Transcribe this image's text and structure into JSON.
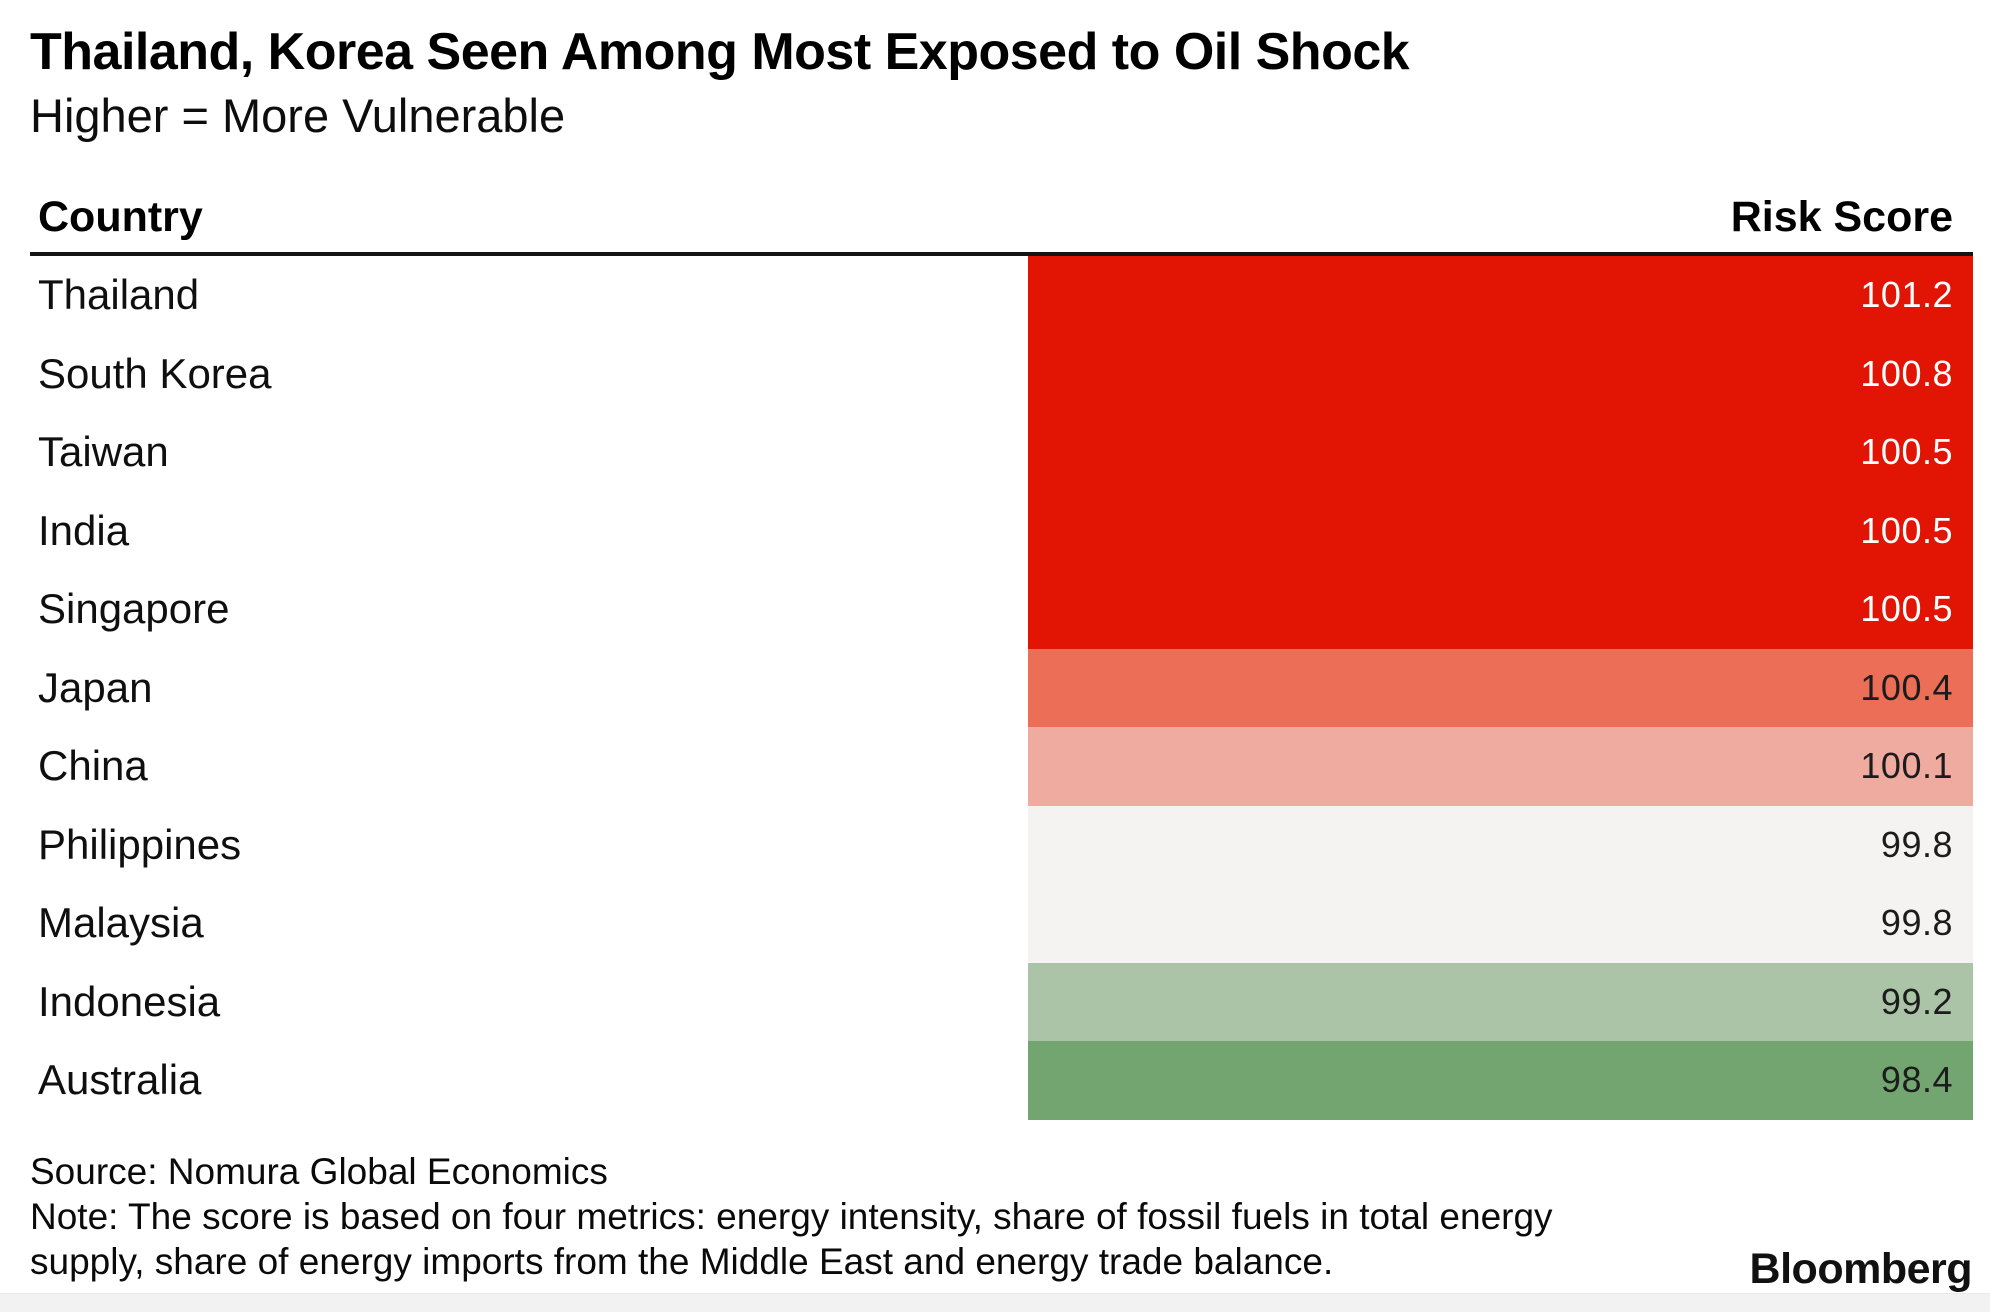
{
  "chart_data": {
    "type": "table",
    "title": "Thailand, Korea Seen Among Most Exposed to Oil Shock",
    "subtitle": "Higher = More Vulnerable",
    "columns": [
      "Country",
      "Risk Score"
    ],
    "rows": [
      {
        "country": "Thailand",
        "score": "101.2",
        "bg_color": "#e21404",
        "text_color": "#ffffff"
      },
      {
        "country": "South Korea",
        "score": "100.8",
        "bg_color": "#e21404",
        "text_color": "#ffffff"
      },
      {
        "country": "Taiwan",
        "score": "100.5",
        "bg_color": "#e21404",
        "text_color": "#ffffff"
      },
      {
        "country": "India",
        "score": "100.5",
        "bg_color": "#e21404",
        "text_color": "#ffffff"
      },
      {
        "country": "Singapore",
        "score": "100.5",
        "bg_color": "#e21404",
        "text_color": "#ffffff"
      },
      {
        "country": "Japan",
        "score": "100.4",
        "bg_color": "#ec6e56",
        "text_color": "#1c1c1c"
      },
      {
        "country": "China",
        "score": "100.1",
        "bg_color": "#efaba0",
        "text_color": "#1c1c1c"
      },
      {
        "country": "Philippines",
        "score": "99.8",
        "bg_color": "#f4f3f1",
        "text_color": "#1c1c1c"
      },
      {
        "country": "Malaysia",
        "score": "99.8",
        "bg_color": "#f4f3f1",
        "text_color": "#1c1c1c"
      },
      {
        "country": "Indonesia",
        "score": "99.2",
        "bg_color": "#abc3a6",
        "text_color": "#1c1c1c"
      },
      {
        "country": "Australia",
        "score": "98.4",
        "bg_color": "#72a56f",
        "text_color": "#1c1c1c"
      }
    ],
    "layout_hints": {
      "legend": "none",
      "grid": "off",
      "value_alignment": "right",
      "palette": [
        "#e21404",
        "#ec6e56",
        "#efaba0",
        "#f4f3f1",
        "#abc3a6",
        "#72a56f"
      ]
    },
    "source": "Source: Nomura Global Economics",
    "note_line1": "Note: The score is based on four metrics: energy intensity, share of fossil fuels in total energy",
    "note_line2": "supply, share of energy imports from the Middle East and energy trade balance.",
    "brand": "Bloomberg"
  }
}
